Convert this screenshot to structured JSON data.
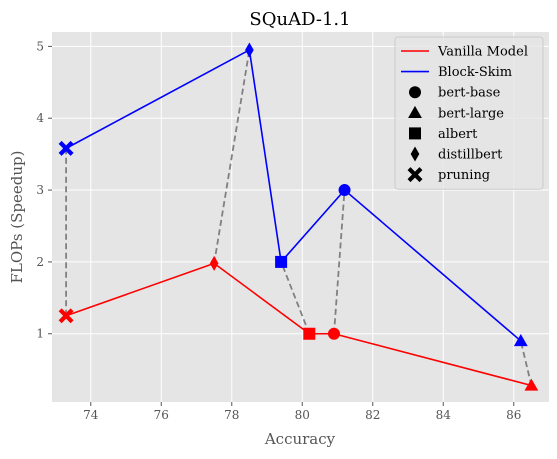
{
  "chart_data": {
    "type": "line",
    "title": "SQuAD-1.1",
    "xlabel": "Accuracy",
    "ylabel": "FLOPs (Speedup)",
    "xlim": [
      72.9,
      87.0
    ],
    "ylim": [
      0.05,
      5.2
    ],
    "xticks": [
      74,
      76,
      78,
      80,
      82,
      84,
      86
    ],
    "yticks": [
      1,
      2,
      3,
      4,
      5
    ],
    "grid": true,
    "legend_position": "top-right",
    "colors": {
      "vanilla": "#ff0000",
      "blockskim": "#0000ff",
      "connector": "#808080",
      "background": "#e5e5e5",
      "grid": "#ffffff"
    },
    "models": [
      {
        "name": "bert-base",
        "marker": "circle",
        "vanilla": [
          80.9,
          1.0
        ],
        "blockskim": [
          81.2,
          3.0
        ]
      },
      {
        "name": "bert-large",
        "marker": "triangle",
        "vanilla": [
          86.5,
          0.28
        ],
        "blockskim": [
          86.2,
          0.9
        ]
      },
      {
        "name": "albert",
        "marker": "square",
        "vanilla": [
          80.2,
          1.0
        ],
        "blockskim": [
          79.4,
          2.0
        ]
      },
      {
        "name": "distillbert",
        "marker": "thin-diamond",
        "vanilla": [
          77.5,
          1.98
        ],
        "blockskim": [
          78.5,
          4.95
        ]
      },
      {
        "name": "pruning",
        "marker": "x",
        "vanilla": [
          73.3,
          1.25
        ],
        "blockskim": [
          73.3,
          3.58
        ]
      }
    ],
    "series": [
      {
        "name": "Vanilla Model",
        "key": "vanilla",
        "color": "#ff0000",
        "order": [
          "pruning",
          "distillbert",
          "albert",
          "bert-base",
          "bert-large"
        ]
      },
      {
        "name": "Block-Skim",
        "key": "blockskim",
        "color": "#0000ff",
        "order": [
          "pruning",
          "distillbert",
          "albert",
          "bert-base",
          "bert-large"
        ]
      }
    ],
    "legend": {
      "lines": [
        "Vanilla Model",
        "Block-Skim"
      ],
      "markers": [
        "bert-base",
        "bert-large",
        "albert",
        "distillbert",
        "pruning"
      ]
    }
  }
}
